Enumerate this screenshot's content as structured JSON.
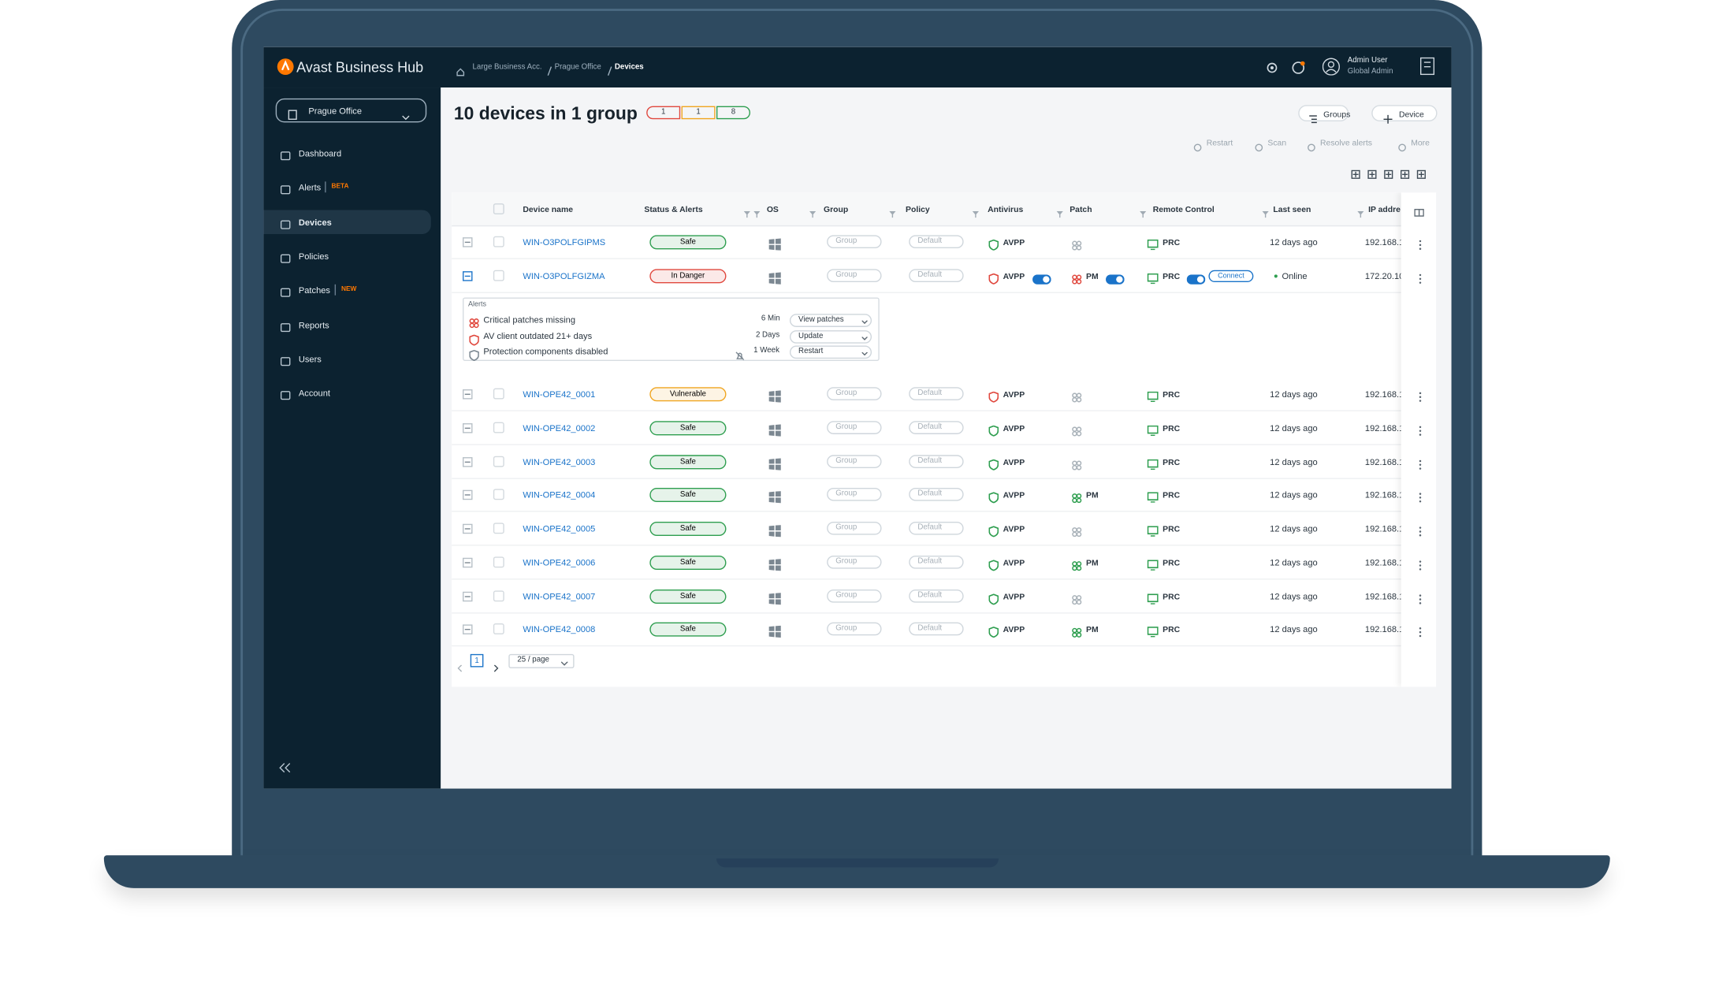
{
  "app": {
    "brand": "Avast Business Hub",
    "breadcrumb": [
      "Large Business Acc.",
      "Prague Office",
      "Devices"
    ],
    "user": {
      "name": "Admin User",
      "role": "Global Admin"
    }
  },
  "sidebar": {
    "site": "Prague Office",
    "items": [
      {
        "label": "Dashboard"
      },
      {
        "label": "Alerts",
        "badge": "BETA"
      },
      {
        "label": "Devices"
      },
      {
        "label": "Policies"
      },
      {
        "label": "Patches",
        "badge": "NEW"
      },
      {
        "label": "Reports"
      },
      {
        "label": "Users"
      },
      {
        "label": "Account"
      }
    ]
  },
  "header": {
    "title": "10 devices in 1 group",
    "counts": [
      {
        "value": 1,
        "color": "#e0483e"
      },
      {
        "value": 1,
        "color": "#f0a520"
      },
      {
        "value": 8,
        "color": "#2e9e4f"
      }
    ],
    "buttons": [
      "Groups",
      "Device"
    ],
    "actions": [
      "Restart",
      "Scan",
      "Resolve alerts",
      "More"
    ]
  },
  "table": {
    "columns": [
      "Device name",
      "Status & Alerts",
      "OS",
      "Group",
      "Policy",
      "Antivirus",
      "Patch",
      "Remote Control",
      "Last seen",
      "IP addre"
    ],
    "rows": [
      {
        "name": "WIN-O3POLFGIPMS",
        "status": "Safe",
        "color": "#2e9e4f",
        "group": "Group",
        "policy": "Default",
        "antivirus": "AVPP",
        "remote": "PRC",
        "last_seen": "12 days ago",
        "ip": "192.168.1"
      },
      {
        "name": "WIN-O3POLFGIZMA",
        "status": "In Danger",
        "color": "#e0483e",
        "group": "Group",
        "policy": "Default",
        "antivirus": "AVPP",
        "patch": "PM",
        "remote": "PRC",
        "remote_action": "Connect",
        "last_seen": "Online",
        "ip": "172.20.10"
      },
      {
        "name": "WIN-OPE42_0001",
        "status": "Vulnerable",
        "color": "#f0a520",
        "group": "Group",
        "policy": "Default",
        "antivirus": "AVPP",
        "remote": "PRC",
        "last_seen": "12 days ago",
        "ip": "192.168.1"
      },
      {
        "name": "WIN-OPE42_0002",
        "status": "Safe",
        "color": "#2e9e4f",
        "group": "Group",
        "policy": "Default",
        "antivirus": "AVPP",
        "remote": "PRC",
        "last_seen": "12 days ago",
        "ip": "192.168.1"
      },
      {
        "name": "WIN-OPE42_0003",
        "status": "Safe",
        "color": "#2e9e4f",
        "group": "Group",
        "policy": "Default",
        "antivirus": "AVPP",
        "remote": "PRC",
        "last_seen": "12 days ago",
        "ip": "192.168.1"
      },
      {
        "name": "WIN-OPE42_0004",
        "status": "Safe",
        "color": "#2e9e4f",
        "group": "Group",
        "policy": "Default",
        "antivirus": "AVPP",
        "patch": "PM",
        "remote": "PRC",
        "last_seen": "12 days ago",
        "ip": "192.168.1"
      },
      {
        "name": "WIN-OPE42_0005",
        "status": "Safe",
        "color": "#2e9e4f",
        "group": "Group",
        "policy": "Default",
        "antivirus": "AVPP",
        "remote": "PRC",
        "last_seen": "12 days ago",
        "ip": "192.168.1"
      },
      {
        "name": "WIN-OPE42_0006",
        "status": "Safe",
        "color": "#2e9e4f",
        "group": "Group",
        "policy": "Default",
        "antivirus": "AVPP",
        "patch": "PM",
        "remote": "PRC",
        "last_seen": "12 days ago",
        "ip": "192.168.1"
      },
      {
        "name": "WIN-OPE42_0007",
        "status": "Safe",
        "color": "#2e9e4f",
        "group": "Group",
        "policy": "Default",
        "antivirus": "AVPP",
        "remote": "PRC",
        "last_seen": "12 days ago",
        "ip": "192.168.1"
      },
      {
        "name": "WIN-OPE42_0008",
        "status": "Safe",
        "color": "#2e9e4f",
        "group": "Group",
        "policy": "Default",
        "antivirus": "AVPP",
        "patch": "PM",
        "remote": "PRC",
        "last_seen": "12 days ago",
        "ip": "192.168.1"
      }
    ]
  },
  "alerts": {
    "title": "Alerts",
    "items": [
      {
        "text": "Critical patches missing",
        "age": "6 Min",
        "action": "View patches"
      },
      {
        "text": "AV client outdated 21+ days",
        "age": "2 Days",
        "action": "Update"
      },
      {
        "text": "Protection components disabled",
        "age": "1 Week",
        "action": "Restart"
      }
    ]
  },
  "pagination": {
    "page": "1",
    "per_page": "25 / page"
  }
}
